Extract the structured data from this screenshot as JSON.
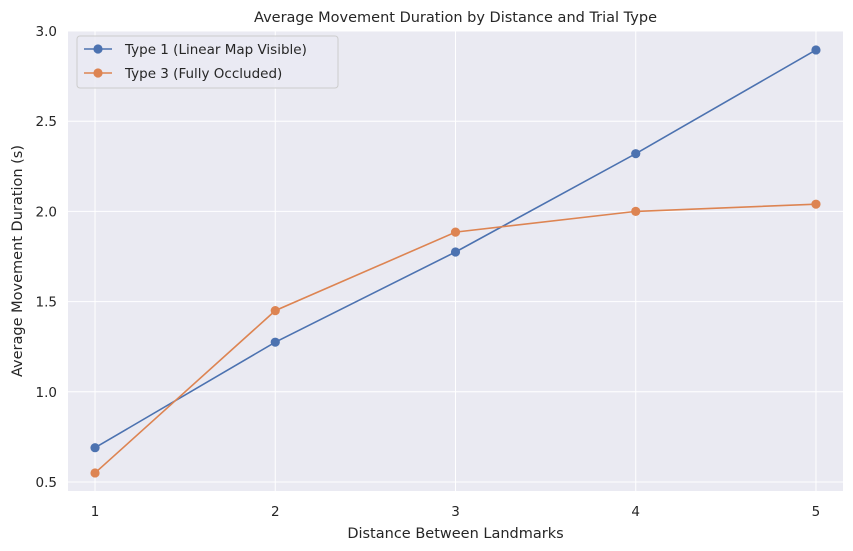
{
  "chart_data": {
    "type": "line",
    "title": "Average Movement Duration by Distance and Trial Type",
    "xlabel": "Distance Between Landmarks",
    "ylabel": "Average Movement Duration (s)",
    "x": [
      1,
      2,
      3,
      4,
      5
    ],
    "x_ticks": [
      "1",
      "2",
      "3",
      "4",
      "5"
    ],
    "y_ticks": [
      "0.5",
      "1.0",
      "1.5",
      "2.0",
      "2.5",
      "3.0"
    ],
    "xlim": [
      0.85,
      5.15
    ],
    "ylim": [
      0.45,
      3.0
    ],
    "grid": true,
    "legend_position": "top-left",
    "series": [
      {
        "name": "Type 1 (Linear Map Visible)",
        "color": "#4c72b0",
        "values": [
          0.69,
          1.275,
          1.775,
          2.32,
          2.895
        ]
      },
      {
        "name": "Type 3 (Fully Occluded)",
        "color": "#dd8452",
        "values": [
          0.55,
          1.45,
          1.885,
          2.0,
          2.04
        ]
      }
    ]
  }
}
